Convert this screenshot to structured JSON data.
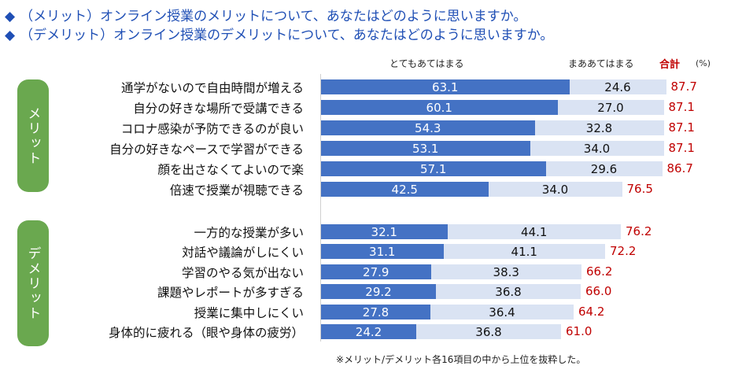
{
  "headers": {
    "line1": "（メリット）オンライン授業のメリットについて、あなたはどのように思いますか。",
    "line2": "（デメリット）オンライン授業のデメリットについて、あなたはどのように思いますか。",
    "diamond": "◆"
  },
  "groups": {
    "merit": "メリット",
    "demerit": "デメリット"
  },
  "footnote": "※メリット/デメリット各16項目の中から上位を抜粋した。",
  "colors": {
    "series1": "#4472c4",
    "series2": "#dae3f3",
    "total": "#c00000",
    "pill": "#6aa84f",
    "header": "#1f4fb5"
  },
  "chart_data": {
    "type": "bar",
    "stacked": true,
    "orientation": "horizontal",
    "unit_label": "(%)",
    "total_label": "合計",
    "xlim": [
      0,
      100
    ],
    "series": [
      {
        "name": "とてもあてはまる"
      },
      {
        "name": "まああてはまる"
      }
    ],
    "rows": [
      {
        "group": "merit",
        "label": "通学がないので自由時間が増える",
        "v1": "63.1",
        "v2": "24.6",
        "total": "87.7"
      },
      {
        "group": "merit",
        "label": "自分の好きな場所で受講できる",
        "v1": "60.1",
        "v2": "27.0",
        "total": "87.1"
      },
      {
        "group": "merit",
        "label": "コロナ感染が予防できるのが良い",
        "v1": "54.3",
        "v2": "32.8",
        "total": "87.1"
      },
      {
        "group": "merit",
        "label": "自分の好きなペースで学習ができる",
        "v1": "53.1",
        "v2": "34.0",
        "total": "87.1"
      },
      {
        "group": "merit",
        "label": "顔を出さなくてよいので楽",
        "v1": "57.1",
        "v2": "29.6",
        "total": "86.7"
      },
      {
        "group": "merit",
        "label": "倍速で授業が視聴できる",
        "v1": "42.5",
        "v2": "34.0",
        "total": "76.5"
      },
      {
        "group": "demerit",
        "label": "一方的な授業が多い",
        "v1": "32.1",
        "v2": "44.1",
        "total": "76.2"
      },
      {
        "group": "demerit",
        "label": "対話や議論がしにくい",
        "v1": "31.1",
        "v2": "41.1",
        "total": "72.2"
      },
      {
        "group": "demerit",
        "label": "学習のやる気が出ない",
        "v1": "27.9",
        "v2": "38.3",
        "total": "66.2"
      },
      {
        "group": "demerit",
        "label": "課題やレポートが多すぎる",
        "v1": "29.2",
        "v2": "36.8",
        "total": "66.0"
      },
      {
        "group": "demerit",
        "label": "授業に集中しにくい",
        "v1": "27.8",
        "v2": "36.4",
        "total": "64.2"
      },
      {
        "group": "demerit",
        "label": "身体的に疲れる（眼や身体の疲労）",
        "v1": "24.2",
        "v2": "36.8",
        "total": "61.0"
      }
    ]
  }
}
